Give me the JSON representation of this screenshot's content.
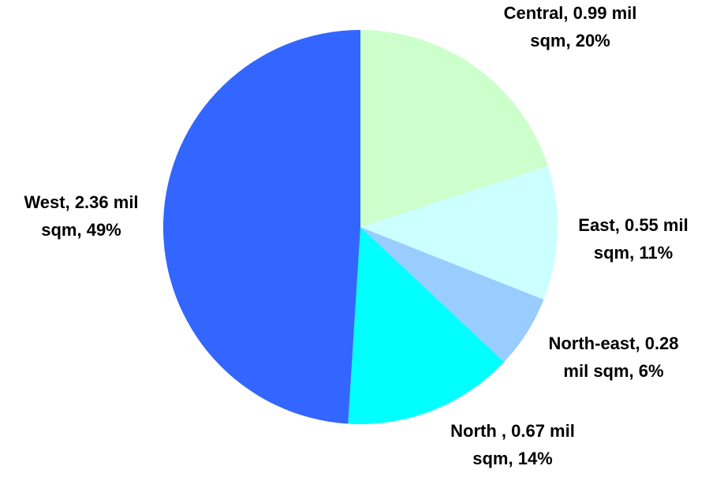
{
  "chart_data": {
    "type": "pie",
    "title": "",
    "start_angle_deg": 0,
    "direction": "clockwise",
    "slices": [
      {
        "name": "Central",
        "value": 0.99,
        "percent": 20,
        "color": "#ccffcc",
        "label_lines": [
          "Central, 0.99 mil",
          "sqm, 20%"
        ]
      },
      {
        "name": "East",
        "value": 0.55,
        "percent": 11,
        "color": "#ccffff",
        "label_lines": [
          "East, 0.55 mil",
          "sqm, 11%"
        ]
      },
      {
        "name": "North-east",
        "value": 0.28,
        "percent": 6,
        "color": "#99ccff",
        "label_lines": [
          "North-east, 0.28",
          "mil sqm, 6%"
        ]
      },
      {
        "name": "North",
        "value": 0.67,
        "percent": 14,
        "color": "#00ffff",
        "label_lines": [
          "North , 0.67 mil",
          "sqm, 14%"
        ]
      },
      {
        "name": "West",
        "value": 2.36,
        "percent": 49,
        "color": "#3366ff",
        "label_lines": [
          "West, 2.36 mil",
          "sqm, 49%"
        ]
      }
    ]
  }
}
